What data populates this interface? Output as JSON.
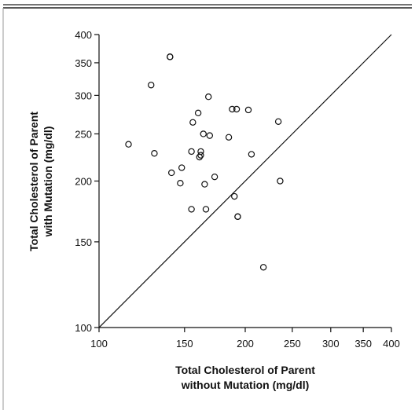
{
  "chart_data": {
    "type": "scatter",
    "scale": "log",
    "xlabel": [
      "Total Cholesterol of Parent",
      "without Mutation (mg/dl)"
    ],
    "ylabel": [
      "Total Cholesterol of Parent",
      "with Mutation (mg/dl)"
    ],
    "xlim": [
      100,
      400
    ],
    "ylim": [
      100,
      400
    ],
    "x_ticks": [
      100,
      150,
      200,
      250,
      300,
      350,
      400
    ],
    "y_ticks": [
      100,
      150,
      200,
      250,
      300,
      350,
      400
    ],
    "reference_line": "identity",
    "marker": "open-circle",
    "points": [
      {
        "x": 115,
        "y": 238
      },
      {
        "x": 128,
        "y": 315
      },
      {
        "x": 130,
        "y": 228
      },
      {
        "x": 140,
        "y": 360
      },
      {
        "x": 140,
        "y": 360
      },
      {
        "x": 141,
        "y": 208
      },
      {
        "x": 147,
        "y": 198
      },
      {
        "x": 148,
        "y": 213
      },
      {
        "x": 155,
        "y": 175
      },
      {
        "x": 155,
        "y": 230
      },
      {
        "x": 156,
        "y": 264
      },
      {
        "x": 160,
        "y": 276
      },
      {
        "x": 161,
        "y": 224
      },
      {
        "x": 162,
        "y": 226
      },
      {
        "x": 162,
        "y": 230
      },
      {
        "x": 164,
        "y": 250
      },
      {
        "x": 165,
        "y": 197
      },
      {
        "x": 166,
        "y": 175
      },
      {
        "x": 168,
        "y": 298
      },
      {
        "x": 169,
        "y": 248
      },
      {
        "x": 173,
        "y": 204
      },
      {
        "x": 185,
        "y": 246
      },
      {
        "x": 188,
        "y": 281
      },
      {
        "x": 190,
        "y": 186
      },
      {
        "x": 192,
        "y": 281
      },
      {
        "x": 193,
        "y": 169
      },
      {
        "x": 193,
        "y": 169
      },
      {
        "x": 203,
        "y": 280
      },
      {
        "x": 206,
        "y": 227
      },
      {
        "x": 218,
        "y": 133
      },
      {
        "x": 234,
        "y": 265
      },
      {
        "x": 236,
        "y": 200
      }
    ]
  }
}
